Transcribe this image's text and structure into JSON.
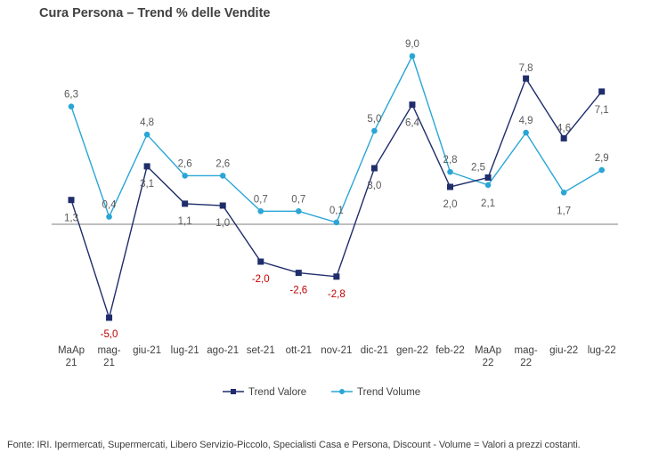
{
  "title": "Cura Persona – Trend % delle Vendite",
  "footer": "Fonte: IRI. Ipermercati, Supermercati, Libero Servizio-Piccolo,  Specialisti Casa e Persona, Discount -  Volume =  Valori a prezzi  costanti.",
  "colors": {
    "valore": "#1f2d6b",
    "volume": "#2aa6d6",
    "negative_label": "#c00000"
  },
  "chart_data": {
    "type": "line",
    "categories": [
      "MaAp 21",
      "mag-21",
      "giu-21",
      "lug-21",
      "ago-21",
      "set-21",
      "ott-21",
      "nov-21",
      "dic-21",
      "gen-22",
      "feb-22",
      "MaAp 22",
      "mag-22",
      "giu-22",
      "lug-22"
    ],
    "category_lines": [
      [
        "MaAp",
        "21"
      ],
      [
        "mag-",
        "21"
      ],
      [
        "giu-21"
      ],
      [
        "lug-21"
      ],
      [
        "ago-21"
      ],
      [
        "set-21"
      ],
      [
        "ott-21"
      ],
      [
        "nov-21"
      ],
      [
        "dic-21"
      ],
      [
        "gen-22"
      ],
      [
        "feb-22"
      ],
      [
        "MaAp",
        "22"
      ],
      [
        "mag-",
        "22"
      ],
      [
        "giu-22"
      ],
      [
        "lug-22"
      ]
    ],
    "series": [
      {
        "name": "Trend Valore",
        "marker": "square",
        "values": [
          1.3,
          -5.0,
          3.1,
          1.1,
          1.0,
          -2.0,
          -2.6,
          -2.8,
          3.0,
          6.4,
          2.0,
          2.5,
          7.8,
          4.6,
          7.1
        ],
        "labels": [
          "1,3",
          "-5,0",
          "3,1",
          "1,1",
          "1,0",
          "-2,0",
          "-2,6",
          "-2,8",
          "3,0",
          "6,4",
          "2,0",
          "2,5",
          "7,8",
          "4,6",
          "7,1"
        ]
      },
      {
        "name": "Trend Volume",
        "marker": "circle",
        "values": [
          6.3,
          0.4,
          4.8,
          2.6,
          2.6,
          0.7,
          0.7,
          0.1,
          5.0,
          9.0,
          2.8,
          2.1,
          4.9,
          1.7,
          2.9
        ],
        "labels": [
          "6,3",
          "0,4",
          "4,8",
          "2,6",
          "2,6",
          "0,7",
          "0,7",
          "0,1",
          "5,0",
          "9,0",
          "2,8",
          "2,1",
          "4,9",
          "1,7",
          "2,9"
        ]
      }
    ],
    "legend_position": "bottom",
    "grid": false
  }
}
